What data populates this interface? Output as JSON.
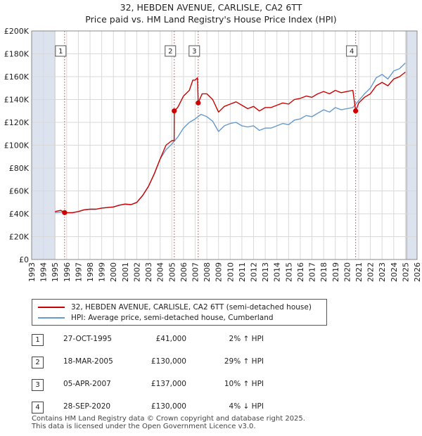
{
  "title_line1": "32, HEBDEN AVENUE, CARLISLE, CA2 6TT",
  "title_line2": "Price paid vs. HM Land Registry's House Price Index (HPI)",
  "colors": {
    "property": "#cc0000",
    "hpi": "#6699cc",
    "shade": "#dde3ee",
    "marker_line": "#e06666"
  },
  "legend": {
    "property_label": "32, HEBDEN AVENUE, CARLISLE, CA2 6TT (semi-detached house)",
    "hpi_label": "HPI: Average price, semi-detached house, Cumberland"
  },
  "sales": [
    {
      "num": "1",
      "date": "27-OCT-1995",
      "price": "£41,000",
      "hpi": "2% ↑ HPI"
    },
    {
      "num": "2",
      "date": "18-MAR-2005",
      "price": "£130,000",
      "hpi": "29% ↑ HPI"
    },
    {
      "num": "3",
      "date": "05-APR-2007",
      "price": "£137,000",
      "hpi": "10% ↑ HPI"
    },
    {
      "num": "4",
      "date": "28-SEP-2020",
      "price": "£130,000",
      "hpi": "4% ↓ HPI"
    }
  ],
  "footer_line1": "Contains HM Land Registry data © Crown copyright and database right 2025.",
  "footer_line2": "This data is licensed under the Open Government Licence v3.0.",
  "chart_data": {
    "type": "line",
    "title": "Price paid vs. HM Land Registry's House Price Index (HPI)",
    "xlim": [
      1993,
      2026
    ],
    "ylim": [
      0,
      200000
    ],
    "x_ticks": [
      "1993",
      "1994",
      "1995",
      "1996",
      "1997",
      "1998",
      "1999",
      "2000",
      "2001",
      "2002",
      "2003",
      "2004",
      "2005",
      "2006",
      "2007",
      "2008",
      "2009",
      "2010",
      "2011",
      "2012",
      "2013",
      "2014",
      "2015",
      "2016",
      "2017",
      "2018",
      "2019",
      "2020",
      "2021",
      "2022",
      "2023",
      "2024",
      "2025",
      "2026"
    ],
    "y_ticks": [
      {
        "value": 0,
        "label": "£0"
      },
      {
        "value": 20000,
        "label": "£20K"
      },
      {
        "value": 40000,
        "label": "£40K"
      },
      {
        "value": 60000,
        "label": "£60K"
      },
      {
        "value": 80000,
        "label": "£80K"
      },
      {
        "value": 100000,
        "label": "£100K"
      },
      {
        "value": 120000,
        "label": "£120K"
      },
      {
        "value": 140000,
        "label": "£140K"
      },
      {
        "value": 160000,
        "label": "£160K"
      },
      {
        "value": 180000,
        "label": "£180K"
      },
      {
        "value": 200000,
        "label": "£200K"
      }
    ],
    "shaded_ranges": [
      [
        1993,
        1995.0
      ],
      [
        2025.1,
        2026
      ]
    ],
    "sale_markers": [
      {
        "label": "1",
        "x": 1995.82,
        "y": 41000
      },
      {
        "label": "2",
        "x": 2005.21,
        "y": 130000
      },
      {
        "label": "3",
        "x": 2007.26,
        "y": 137000
      },
      {
        "label": "4",
        "x": 2020.74,
        "y": 130000
      }
    ],
    "series": [
      {
        "name": "32, HEBDEN AVENUE, CARLISLE, CA2 6TT (semi-detached house)",
        "points": [
          [
            1995.0,
            42000
          ],
          [
            1995.5,
            43000
          ],
          [
            1995.82,
            41000
          ],
          [
            1996.5,
            41000
          ],
          [
            1997.0,
            42000
          ],
          [
            1997.5,
            43500
          ],
          [
            1998.0,
            44000
          ],
          [
            1998.5,
            44000
          ],
          [
            1999.0,
            45000
          ],
          [
            1999.5,
            45500
          ],
          [
            2000.0,
            46000
          ],
          [
            2000.5,
            47500
          ],
          [
            2001.0,
            48500
          ],
          [
            2001.5,
            48000
          ],
          [
            2002.0,
            50000
          ],
          [
            2002.5,
            56000
          ],
          [
            2003.0,
            64000
          ],
          [
            2003.5,
            75000
          ],
          [
            2004.0,
            88000
          ],
          [
            2004.5,
            100000
          ],
          [
            2005.0,
            104000
          ],
          [
            2005.2,
            104000
          ],
          [
            2005.21,
            130000
          ],
          [
            2005.5,
            133000
          ],
          [
            2006.0,
            143000
          ],
          [
            2006.5,
            148000
          ],
          [
            2006.8,
            157000
          ],
          [
            2007.0,
            157000
          ],
          [
            2007.2,
            159000
          ],
          [
            2007.26,
            137000
          ],
          [
            2007.6,
            145000
          ],
          [
            2008.0,
            145000
          ],
          [
            2008.5,
            140000
          ],
          [
            2009.0,
            129000
          ],
          [
            2009.5,
            134000
          ],
          [
            2010.0,
            136000
          ],
          [
            2010.5,
            138000
          ],
          [
            2011.0,
            135000
          ],
          [
            2011.5,
            132000
          ],
          [
            2012.0,
            134000
          ],
          [
            2012.5,
            130000
          ],
          [
            2013.0,
            133000
          ],
          [
            2013.5,
            133000
          ],
          [
            2014.0,
            135000
          ],
          [
            2014.5,
            137000
          ],
          [
            2015.0,
            136000
          ],
          [
            2015.5,
            140000
          ],
          [
            2016.0,
            141000
          ],
          [
            2016.5,
            143000
          ],
          [
            2017.0,
            142000
          ],
          [
            2017.5,
            145000
          ],
          [
            2018.0,
            147000
          ],
          [
            2018.5,
            145000
          ],
          [
            2019.0,
            148000
          ],
          [
            2019.5,
            146000
          ],
          [
            2020.0,
            147000
          ],
          [
            2020.5,
            148000
          ],
          [
            2020.74,
            130000
          ],
          [
            2021.0,
            137000
          ],
          [
            2021.5,
            142000
          ],
          [
            2022.0,
            145000
          ],
          [
            2022.5,
            152000
          ],
          [
            2023.0,
            155000
          ],
          [
            2023.5,
            152000
          ],
          [
            2024.0,
            158000
          ],
          [
            2024.5,
            160000
          ],
          [
            2025.0,
            164000
          ]
        ]
      },
      {
        "name": "HPI: Average price, semi-detached house, Cumberland",
        "points": [
          [
            1995.0,
            41000
          ],
          [
            1995.5,
            41500
          ],
          [
            1996.0,
            41000
          ],
          [
            1996.5,
            41000
          ],
          [
            1997.0,
            42000
          ],
          [
            1997.5,
            43500
          ],
          [
            1998.0,
            44000
          ],
          [
            1998.5,
            44000
          ],
          [
            1999.0,
            45000
          ],
          [
            1999.5,
            45500
          ],
          [
            2000.0,
            46000
          ],
          [
            2000.5,
            47500
          ],
          [
            2001.0,
            48500
          ],
          [
            2001.5,
            48000
          ],
          [
            2002.0,
            50000
          ],
          [
            2002.5,
            56000
          ],
          [
            2003.0,
            64000
          ],
          [
            2003.5,
            75000
          ],
          [
            2004.0,
            88000
          ],
          [
            2004.5,
            96000
          ],
          [
            2005.0,
            101000
          ],
          [
            2005.5,
            107000
          ],
          [
            2006.0,
            115000
          ],
          [
            2006.5,
            120000
          ],
          [
            2007.0,
            123000
          ],
          [
            2007.5,
            127000
          ],
          [
            2008.0,
            125000
          ],
          [
            2008.5,
            121000
          ],
          [
            2009.0,
            112000
          ],
          [
            2009.5,
            117000
          ],
          [
            2010.0,
            119000
          ],
          [
            2010.5,
            120000
          ],
          [
            2011.0,
            117000
          ],
          [
            2011.5,
            116000
          ],
          [
            2012.0,
            117000
          ],
          [
            2012.5,
            113000
          ],
          [
            2013.0,
            115000
          ],
          [
            2013.5,
            115000
          ],
          [
            2014.0,
            117000
          ],
          [
            2014.5,
            119000
          ],
          [
            2015.0,
            118000
          ],
          [
            2015.5,
            122000
          ],
          [
            2016.0,
            123000
          ],
          [
            2016.5,
            126000
          ],
          [
            2017.0,
            125000
          ],
          [
            2017.5,
            128000
          ],
          [
            2018.0,
            131000
          ],
          [
            2018.5,
            129000
          ],
          [
            2019.0,
            133000
          ],
          [
            2019.5,
            131000
          ],
          [
            2020.0,
            132000
          ],
          [
            2020.5,
            133000
          ],
          [
            2021.0,
            139000
          ],
          [
            2021.5,
            145000
          ],
          [
            2022.0,
            150000
          ],
          [
            2022.5,
            159000
          ],
          [
            2023.0,
            162000
          ],
          [
            2023.5,
            158000
          ],
          [
            2024.0,
            165000
          ],
          [
            2024.5,
            167000
          ],
          [
            2025.0,
            172000
          ]
        ]
      }
    ]
  }
}
